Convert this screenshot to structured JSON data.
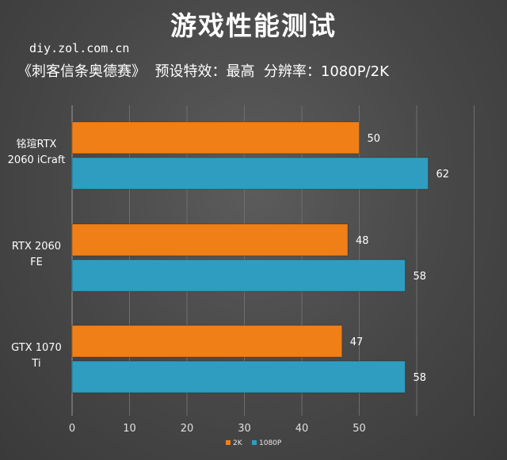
{
  "header": {
    "title": "游戏性能测试",
    "site": "diy.zol.com.cn",
    "settings": "《刺客信条奥德赛》  预设特效：最高  分辨率：1080P/2K"
  },
  "colors": {
    "series_2k": "#f17f17",
    "series_1080p": "#2f9dbf",
    "grid": "#6e6e6e",
    "axis": "#9a9a9a"
  },
  "chart_data": {
    "type": "bar",
    "orientation": "horizontal",
    "categories": [
      [
        "铭瑄RTX",
        "2060 iCraft"
      ],
      [
        "RTX 2060",
        "FE"
      ],
      [
        "GTX 1070",
        "Ti"
      ]
    ],
    "series": [
      {
        "name": "2K",
        "values": [
          50,
          48,
          47
        ]
      },
      {
        "name": "1080P",
        "values": [
          62,
          58,
          58
        ]
      }
    ],
    "xticks": [
      0,
      10,
      20,
      30,
      40,
      50
    ],
    "xlim": [
      0,
      70
    ],
    "grid": true,
    "legend_position": "bottom-center"
  }
}
